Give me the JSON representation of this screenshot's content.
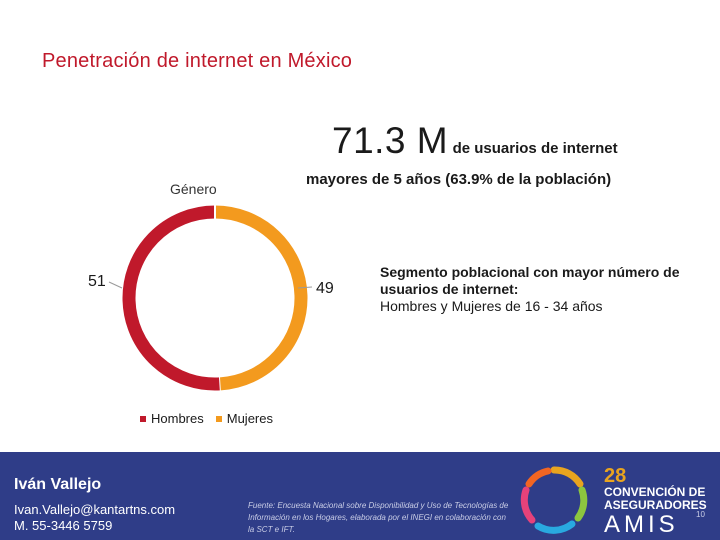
{
  "slide": {
    "title": "Penetración de internet en México",
    "headline_value": "71.3 M",
    "headline_rest": "de usuarios de internet",
    "headline_sub": "mayores de 5 años (63.9% de la población)",
    "segment_title": "Segmento poblacional con mayor número de usuarios de internet:",
    "segment_text": "Hombres y Mujeres de 16 - 34 años"
  },
  "chart_data": {
    "type": "pie",
    "title": "Género",
    "categories": [
      "Hombres",
      "Mujeres"
    ],
    "values": [
      51,
      49
    ],
    "colors": [
      "#c0192b",
      "#f39a1e"
    ],
    "donut": true,
    "legend_position": "bottom"
  },
  "footer": {
    "name": "Iván Vallejo",
    "email": "Ivan.Vallejo@kantartns.com",
    "phone": "M. 55-3446 5759",
    "source": "Fuente: Encuesta Nacional sobre Disponibilidad y Uso de Tecnologías de Información en los Hogares, elaborada por el INEGI en colaboración con la SCT e IFT.",
    "logo_number": "28",
    "logo_line1": "CONVENCIÓN DE",
    "logo_line2": "ASEGURADORES",
    "logo_word": "AMIS",
    "page_number": "10",
    "color": "#2f3d88"
  }
}
